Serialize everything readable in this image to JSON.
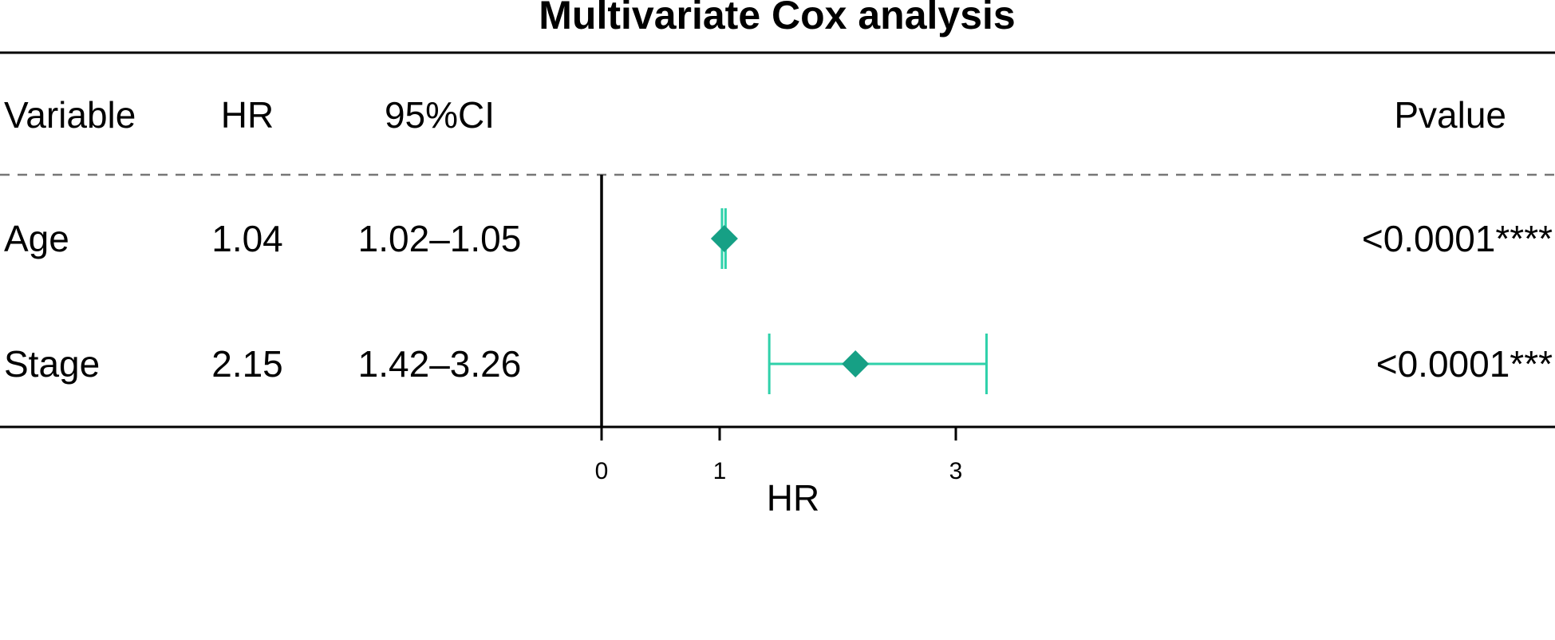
{
  "chart_data": {
    "type": "forest",
    "title": "Multivariate Cox analysis",
    "columns": {
      "variable": "Variable",
      "hr": "HR",
      "ci": "95%CI",
      "pvalue": "Pvalue"
    },
    "rows": [
      {
        "variable": "Age",
        "hr": 1.04,
        "hr_label": "1.04",
        "ci_low": 1.02,
        "ci_high": 1.05,
        "ci_label": "1.02–1.05",
        "pvalue_label": "<0.0001****"
      },
      {
        "variable": "Stage",
        "hr": 2.15,
        "hr_label": "2.15",
        "ci_low": 1.42,
        "ci_high": 3.26,
        "ci_label": "1.42–3.26",
        "pvalue_label": "<0.0001***"
      }
    ],
    "xlabel": "HR",
    "xticks": [
      0,
      1,
      3
    ],
    "xlim": [
      0,
      4.6
    ],
    "reference_line": 0,
    "marker_color": "#16a085",
    "ci_color": "#2fd1aa"
  }
}
